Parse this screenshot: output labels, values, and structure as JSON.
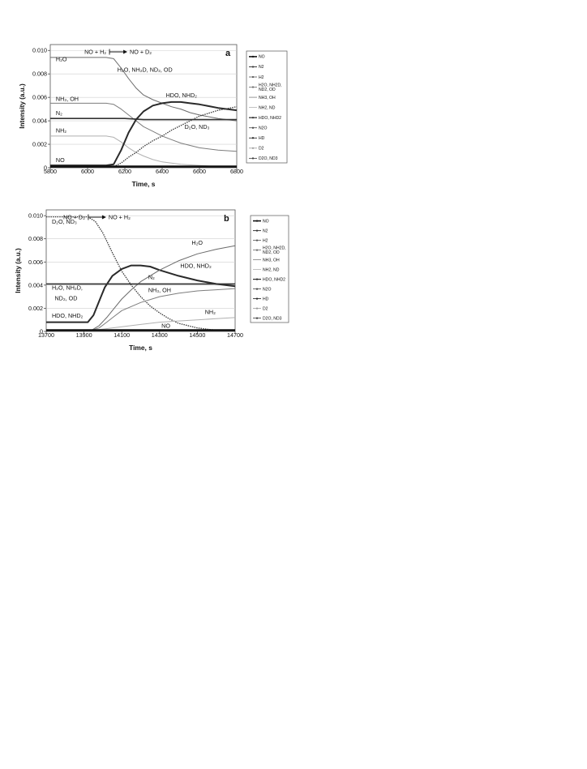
{
  "chart_data": [
    {
      "type": "line",
      "panel_label": "a",
      "xlabel": "Time, s",
      "ylabel": "Intensity (a.u.)",
      "xlim": [
        5800,
        6800
      ],
      "ylim": [
        0,
        0.0105
      ],
      "x_ticks": [
        "5800",
        "6000",
        "6200",
        "6400",
        "6600",
        "6800"
      ],
      "y_ticks": [
        "0",
        "0.002",
        "0.004",
        "0.006",
        "0.008",
        "0.010"
      ],
      "switch": {
        "from": "NO + H2",
        "to": "NO + D2",
        "x": 6135
      },
      "grid": true,
      "legend_position": "right",
      "legend": [
        "NO",
        "N2",
        "H2",
        "H2O, NH2D, ND2, OD",
        "NH3, OH",
        "NH2, ND",
        "HDO, NHD2",
        "N2O",
        "HD",
        "D2",
        "D2O, ND3"
      ],
      "series": [
        {
          "name": "H2O, NH2D, ND2, OD",
          "x": [
            5800,
            6100,
            6140,
            6180,
            6220,
            6260,
            6300,
            6350,
            6400,
            6450,
            6500,
            6550,
            6600,
            6700,
            6800
          ],
          "y": [
            0.0094,
            0.0094,
            0.0093,
            0.0085,
            0.0076,
            0.0068,
            0.0062,
            0.0058,
            0.0055,
            0.0052,
            0.005,
            0.0047,
            0.0045,
            0.0042,
            0.004
          ]
        },
        {
          "name": "NH3, OH",
          "x": [
            5800,
            6100,
            6140,
            6180,
            6220,
            6260,
            6300,
            6350,
            6400,
            6450,
            6500,
            6550,
            6600,
            6700,
            6800
          ],
          "y": [
            0.0055,
            0.0055,
            0.0054,
            0.005,
            0.0045,
            0.004,
            0.0035,
            0.0031,
            0.0027,
            0.0024,
            0.0021,
            0.0019,
            0.0017,
            0.0015,
            0.0014
          ]
        },
        {
          "name": "N2",
          "x": [
            5800,
            6100,
            6140,
            6200,
            6300,
            6400,
            6500,
            6600,
            6700,
            6800
          ],
          "y": [
            0.0042,
            0.0042,
            0.0042,
            0.0042,
            0.0041,
            0.0041,
            0.0041,
            0.0041,
            0.0041,
            0.0041
          ]
        },
        {
          "name": "NH2, ND",
          "x": [
            5800,
            6100,
            6140,
            6180,
            6220,
            6260,
            6300,
            6350,
            6400,
            6500,
            6600,
            6700,
            6800
          ],
          "y": [
            0.0027,
            0.0027,
            0.0026,
            0.0022,
            0.0017,
            0.0013,
            0.001,
            0.0007,
            0.0005,
            0.0003,
            0.0002,
            0.0001,
            0.0001
          ]
        },
        {
          "name": "HDO, NHD2",
          "x": [
            5800,
            6100,
            6140,
            6180,
            6220,
            6260,
            6300,
            6350,
            6400,
            6450,
            6500,
            6550,
            6600,
            6700,
            6800
          ],
          "y": [
            0.0002,
            0.0002,
            0.0003,
            0.0015,
            0.003,
            0.0041,
            0.0048,
            0.0053,
            0.0055,
            0.0056,
            0.0056,
            0.0055,
            0.0054,
            0.0051,
            0.0049
          ]
        },
        {
          "name": "D2O, ND3",
          "x": [
            5800,
            6100,
            6140,
            6180,
            6220,
            6260,
            6300,
            6350,
            6400,
            6450,
            6500,
            6550,
            6600,
            6700,
            6800
          ],
          "y": [
            0.0001,
            0.0001,
            0.0001,
            0.0004,
            0.0009,
            0.0013,
            0.0018,
            0.0023,
            0.0027,
            0.0032,
            0.0036,
            0.004,
            0.0044,
            0.0049,
            0.0052
          ]
        },
        {
          "name": "NO",
          "x": [
            5800,
            6000,
            6200,
            6400,
            6600,
            6800
          ],
          "y": [
            0.0001,
            0.0001,
            0.0001,
            0.0001,
            0.0001,
            0.0001
          ]
        }
      ],
      "annotations": [
        {
          "text": "H₂O",
          "x": 5830,
          "y": 0.0091
        },
        {
          "text": "H₂O, NH₂D, ND₂, OD",
          "x": 6160,
          "y": 0.0082
        },
        {
          "text": "NH₃, OH",
          "x": 5830,
          "y": 0.0057
        },
        {
          "text": "HDO, NHD₂",
          "x": 6420,
          "y": 0.006
        },
        {
          "text": "N₂",
          "x": 5830,
          "y": 0.0045
        },
        {
          "text": "D₂O, ND₃",
          "x": 6520,
          "y": 0.0033
        },
        {
          "text": "NH₂",
          "x": 5830,
          "y": 0.003
        },
        {
          "text": "NO",
          "x": 5830,
          "y": 0.0005
        }
      ]
    },
    {
      "type": "line",
      "panel_label": "b",
      "xlabel": "Time, s",
      "ylabel": "Intensity (a.u.)",
      "xlim": [
        13700,
        14700
      ],
      "ylim": [
        0,
        0.0105
      ],
      "x_ticks": [
        "13700",
        "13900",
        "14100",
        "14300",
        "14500",
        "14700"
      ],
      "y_ticks": [
        "0",
        "0.002",
        "0.004",
        "0.006",
        "0.008",
        "0.010"
      ],
      "switch": {
        "from": "NO + D2",
        "to": "NO + H2",
        "x": 13940
      },
      "grid": true,
      "legend_position": "right",
      "legend": [
        "NO",
        "N2",
        "H2",
        "H2O, NH2D, ND2, OD",
        "NH3, OH",
        "NH2, ND",
        "HDO, NHD2",
        "N2O",
        "HD",
        "D2",
        "D2O, ND3"
      ],
      "series": [
        {
          "name": "D2O, ND3",
          "x": [
            13700,
            13920,
            13960,
            14000,
            14050,
            14100,
            14150,
            14200,
            14250,
            14300,
            14350,
            14400,
            14500,
            14600,
            14700
          ],
          "y": [
            0.0099,
            0.0099,
            0.0095,
            0.0085,
            0.0068,
            0.0052,
            0.004,
            0.003,
            0.0022,
            0.0016,
            0.0011,
            0.0007,
            0.0003,
            0.0001,
            0.0001
          ]
        },
        {
          "name": "HDO, NHD2",
          "x": [
            13700,
            13920,
            13950,
            13980,
            14010,
            14050,
            14100,
            14150,
            14200,
            14250,
            14300,
            14400,
            14500,
            14600,
            14700
          ],
          "y": [
            0.0008,
            0.0008,
            0.0014,
            0.0026,
            0.0038,
            0.0048,
            0.0054,
            0.0057,
            0.0057,
            0.0056,
            0.0053,
            0.0048,
            0.0044,
            0.0041,
            0.0039
          ]
        },
        {
          "name": "H2O, NH2D, ND2, OD",
          "x": [
            13700,
            13940,
            13980,
            14020,
            14060,
            14100,
            14150,
            14200,
            14300,
            14400,
            14500,
            14600,
            14700
          ],
          "y": [
            0.0001,
            0.0001,
            0.0005,
            0.0012,
            0.002,
            0.0028,
            0.0036,
            0.0043,
            0.0053,
            0.0061,
            0.0067,
            0.0071,
            0.0074
          ]
        },
        {
          "name": "N2",
          "x": [
            13700,
            13900,
            14100,
            14300,
            14500,
            14700
          ],
          "y": [
            0.0041,
            0.0041,
            0.0041,
            0.0041,
            0.0041,
            0.0041
          ]
        },
        {
          "name": "NH3, OH",
          "x": [
            13700,
            13940,
            13980,
            14020,
            14060,
            14100,
            14200,
            14300,
            14400,
            14500,
            14600,
            14700
          ],
          "y": [
            0.0001,
            0.0001,
            0.0003,
            0.0008,
            0.0013,
            0.0018,
            0.0025,
            0.003,
            0.0033,
            0.0035,
            0.0036,
            0.0037
          ]
        },
        {
          "name": "NH2, ND",
          "x": [
            13700,
            13940,
            14000,
            14100,
            14200,
            14300,
            14400,
            14500,
            14600,
            14700
          ],
          "y": [
            0.0001,
            0.0001,
            0.0002,
            0.0004,
            0.0006,
            0.0008,
            0.0009,
            0.001,
            0.0011,
            0.0012
          ]
        },
        {
          "name": "NO",
          "x": [
            13700,
            13900,
            14100,
            14300,
            14500,
            14700
          ],
          "y": [
            0.0001,
            0.0001,
            0.0001,
            0.0001,
            0.0001,
            0.0001
          ]
        }
      ],
      "annotations": [
        {
          "text": "D₂O, ND₃",
          "x": 13730,
          "y": 0.0093
        },
        {
          "text": "H₂O",
          "x": 14470,
          "y": 0.0075
        },
        {
          "text": "HDO, NHD₂",
          "x": 14410,
          "y": 0.0055
        },
        {
          "text": "N₂",
          "x": 14240,
          "y": 0.0045
        },
        {
          "text": "NH₃, OH",
          "x": 14240,
          "y": 0.0034
        },
        {
          "text": "H₂O, NH₂D,",
          "x": 13730,
          "y": 0.0036
        },
        {
          "text": "ND₂, OD",
          "x": 13745,
          "y": 0.0027
        },
        {
          "text": "HDO, NHD₂",
          "x": 13730,
          "y": 0.0012
        },
        {
          "text": "NH₂",
          "x": 14540,
          "y": 0.0015
        },
        {
          "text": "NO",
          "x": 14310,
          "y": 0.0003
        }
      ]
    }
  ]
}
